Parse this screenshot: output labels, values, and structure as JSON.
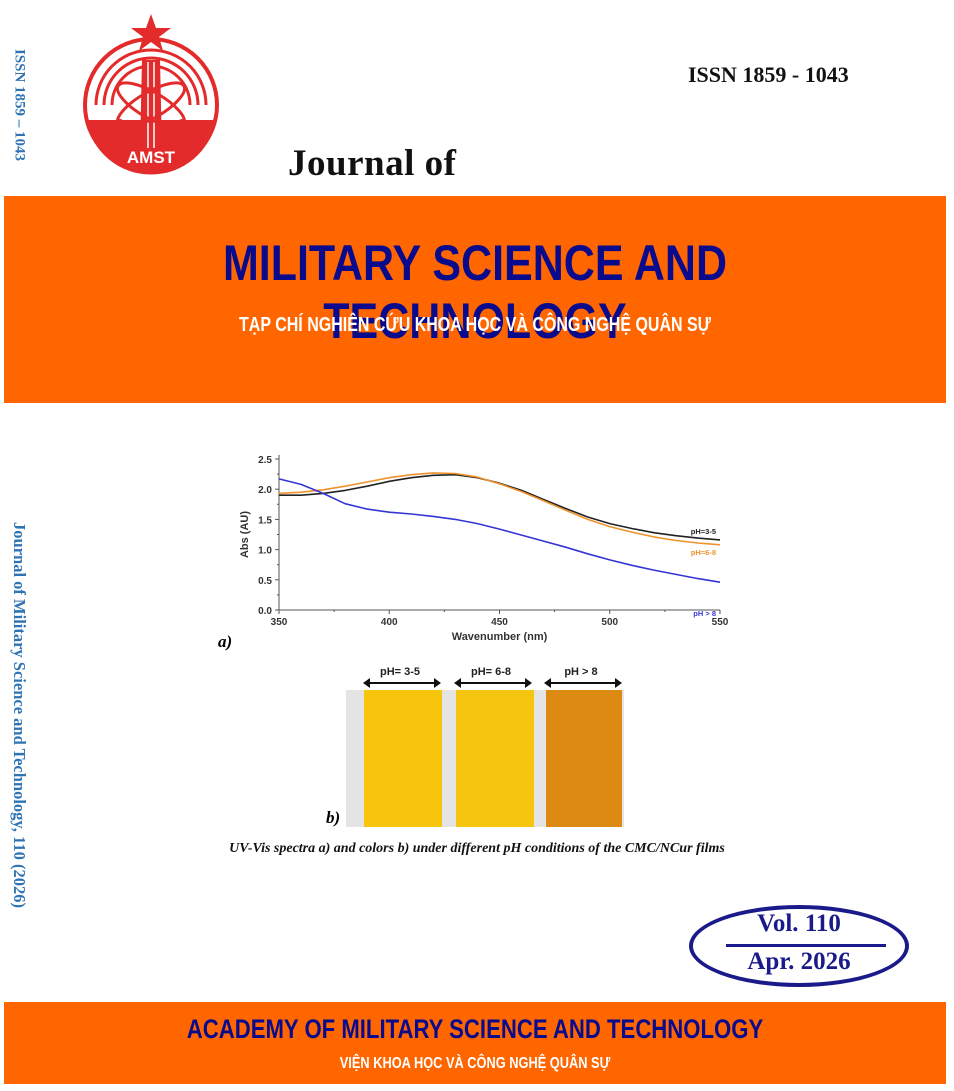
{
  "spine": {
    "issn": "ISSN  1859 – 1043",
    "title": "Journal of Military Science and Technology, 110 (2026)"
  },
  "logo": {
    "text": "AMST",
    "color": "#e32b2b"
  },
  "header": {
    "issn": "ISSN 1859 - 1043",
    "journal_of": "Journal of"
  },
  "top_band": {
    "title": "MILITARY SCIENCE AND TECHNOLOGY",
    "subtitle": "TẠP CHÍ NGHIÊN CỨU KHOA HỌC VÀ CÔNG NGHỆ QUÂN SỰ",
    "bg_color": "#ff6600",
    "title_color": "#0a0a8c"
  },
  "figure": {
    "label_a": "a)",
    "label_b": "b)",
    "caption": "UV-Vis spectra a) and colors b) under different pH conditions of the CMC/NCur films",
    "films": [
      {
        "label": "pH= 3-5",
        "color": "#f7c60c"
      },
      {
        "label": "pH= 6-8",
        "color": "#f5c50f"
      },
      {
        "label": "pH > 8",
        "color": "#dc8a12"
      }
    ]
  },
  "chart_data": {
    "type": "line",
    "title": "",
    "xlabel": "Wavenumber (nm)",
    "ylabel": "Abs (AU)",
    "xlim": [
      350,
      550
    ],
    "ylim": [
      0.0,
      2.5
    ],
    "xticks": [
      "350",
      "400",
      "450",
      "500",
      "550"
    ],
    "yticks": [
      "0.0",
      "0.5",
      "1.0",
      "1.5",
      "2.0",
      "2.5"
    ],
    "grid": false,
    "legend_position": "inline-right",
    "x": [
      350,
      360,
      370,
      380,
      390,
      400,
      410,
      420,
      430,
      440,
      450,
      460,
      470,
      480,
      490,
      500,
      510,
      520,
      530,
      540,
      550
    ],
    "series": [
      {
        "name": "pH=3-5",
        "color": "#222222",
        "values": [
          1.9,
          1.9,
          1.93,
          1.98,
          2.05,
          2.13,
          2.19,
          2.23,
          2.24,
          2.19,
          2.1,
          1.98,
          1.83,
          1.68,
          1.54,
          1.43,
          1.35,
          1.28,
          1.23,
          1.19,
          1.16
        ]
      },
      {
        "name": "pH=6-8",
        "color": "#f0922b",
        "values": [
          1.93,
          1.95,
          1.99,
          2.05,
          2.12,
          2.19,
          2.24,
          2.27,
          2.26,
          2.2,
          2.09,
          1.96,
          1.81,
          1.65,
          1.5,
          1.38,
          1.29,
          1.21,
          1.15,
          1.11,
          1.08
        ]
      },
      {
        "name": "pH > 8",
        "color": "#3535d6",
        "values": [
          2.17,
          2.08,
          1.93,
          1.76,
          1.67,
          1.62,
          1.59,
          1.55,
          1.5,
          1.43,
          1.34,
          1.24,
          1.14,
          1.04,
          0.93,
          0.83,
          0.74,
          0.66,
          0.59,
          0.52,
          0.46
        ]
      }
    ]
  },
  "volume": {
    "vol": "Vol. 110",
    "date": "Apr. 2026",
    "color": "#1a1a8a"
  },
  "bottom_band": {
    "title": "ACADEMY OF MILITARY SCIENCE AND TECHNOLOGY",
    "subtitle": "VIỆN KHOA HỌC VÀ CÔNG NGHỆ QUÂN SỰ"
  }
}
